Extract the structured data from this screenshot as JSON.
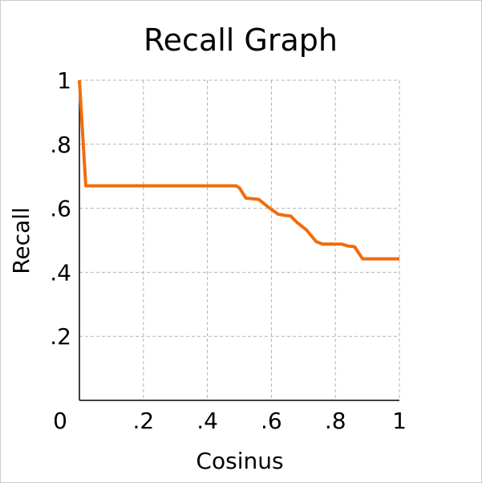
{
  "chart_data": {
    "type": "line",
    "title": "Recall Graph",
    "xlabel": "Cosinus",
    "ylabel": "Recall",
    "xlim": [
      0,
      1
    ],
    "ylim": [
      0,
      1
    ],
    "grid": true,
    "x_ticks": [
      {
        "value": 0,
        "label": "0"
      },
      {
        "value": 0.2,
        "label": ".2"
      },
      {
        "value": 0.4,
        "label": ".4"
      },
      {
        "value": 0.6,
        "label": ".6"
      },
      {
        "value": 0.8,
        "label": ".8"
      },
      {
        "value": 1,
        "label": "1"
      }
    ],
    "y_ticks": [
      {
        "value": 0.2,
        "label": ".2"
      },
      {
        "value": 0.4,
        "label": ".4"
      },
      {
        "value": 0.6,
        "label": ".6"
      },
      {
        "value": 0.8,
        "label": ".8"
      },
      {
        "value": 1,
        "label": "1"
      }
    ],
    "series": [
      {
        "color": "#f06d0c",
        "x": [
          0,
          0.02,
          0.05,
          0.1,
          0.2,
          0.3,
          0.4,
          0.49,
          0.5,
          0.52,
          0.56,
          0.59,
          0.62,
          0.64,
          0.66,
          0.68,
          0.71,
          0.74,
          0.76,
          0.8,
          0.82,
          0.84,
          0.86,
          0.885,
          0.92,
          1.0
        ],
        "y": [
          1.0,
          0.67,
          0.67,
          0.67,
          0.67,
          0.67,
          0.67,
          0.67,
          0.664,
          0.632,
          0.628,
          0.604,
          0.582,
          0.578,
          0.576,
          0.556,
          0.532,
          0.496,
          0.488,
          0.488,
          0.488,
          0.482,
          0.48,
          0.442,
          0.442,
          0.442
        ]
      }
    ]
  }
}
